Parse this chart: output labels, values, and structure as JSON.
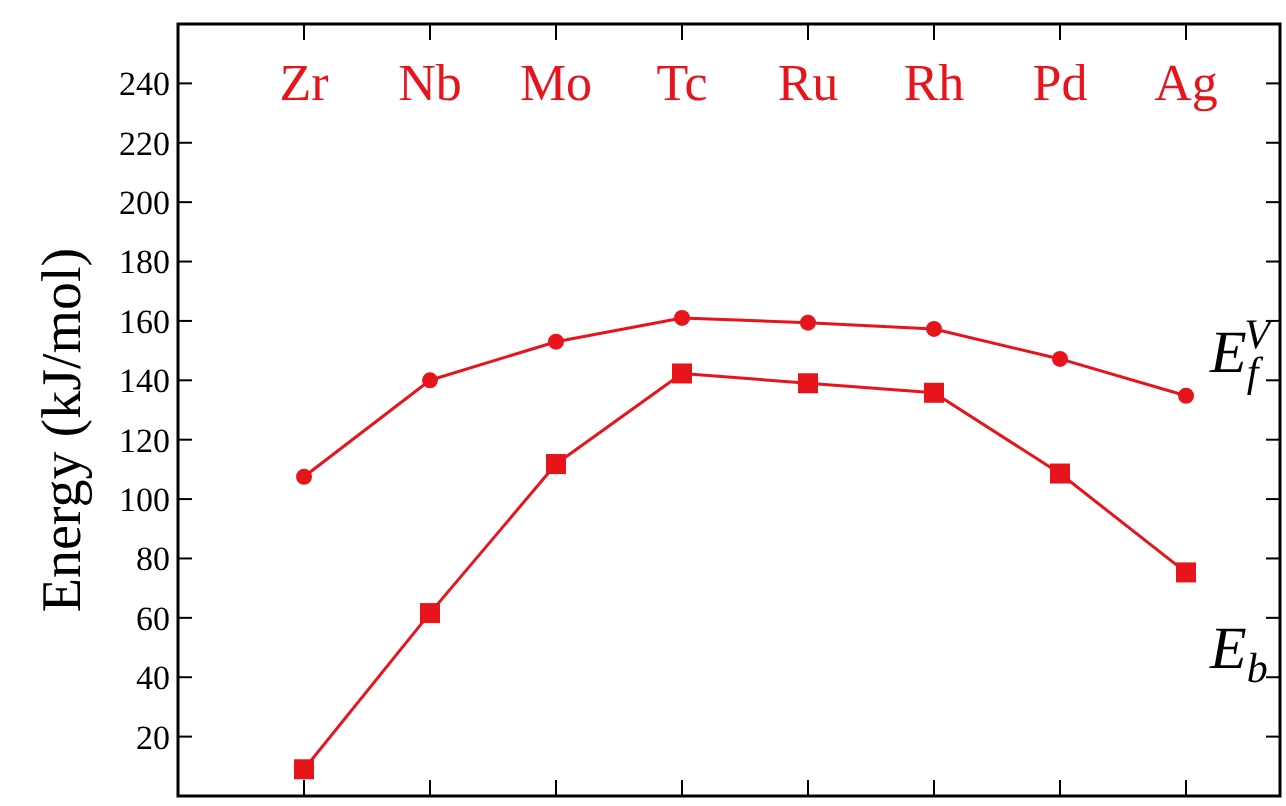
{
  "chart_data": {
    "type": "line",
    "ylabel": "Energy  (kJ/mol)",
    "categories": [
      "Zr",
      "Nb",
      "Mo",
      "Tc",
      "Ru",
      "Rh",
      "Pd",
      "Ag"
    ],
    "ylim": [
      0,
      260
    ],
    "yticks": [
      {
        "value": 0,
        "label": null
      },
      20,
      40,
      60,
      80,
      100,
      120,
      140,
      160,
      180,
      200,
      220,
      240,
      {
        "value": 260,
        "label": null
      }
    ],
    "series": [
      {
        "name": "E$_{f}$$^{V}$",
        "color": "#e8141c",
        "marker": "circle",
        "values": [
          107.5,
          140,
          153,
          161,
          159.4,
          157.3,
          147.2,
          134.8
        ]
      },
      {
        "name": "E$_{b}$",
        "color": "#e8141c",
        "marker": "square",
        "values": [
          9,
          61.6,
          111.8,
          142.3,
          139,
          135.8,
          108.6,
          75.3
        ]
      }
    ]
  }
}
